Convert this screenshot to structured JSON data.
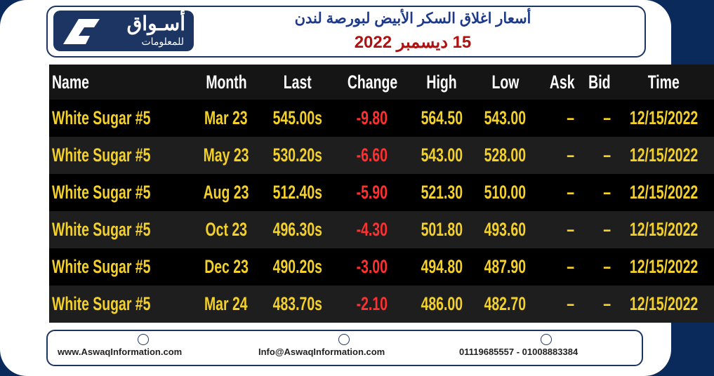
{
  "header": {
    "logo": {
      "name": "أسـواق",
      "subtitle": "للمعلومات"
    },
    "title": "أسعار اغلاق السكر الأبيض لبورصة لندن",
    "date": "15 ديسمبر 2022"
  },
  "table": {
    "columns": [
      "Name",
      "Month",
      "Last",
      "Change",
      "High",
      "Low",
      "Ask",
      "Bid",
      "Time"
    ],
    "rows": [
      [
        "White Sugar #5",
        "Mar 23",
        "545.00s",
        "-9.80",
        "564.50",
        "543.00",
        "–",
        "–",
        "12/15/2022"
      ],
      [
        "White Sugar #5",
        "May 23",
        "530.20s",
        "-6.60",
        "543.00",
        "528.00",
        "–",
        "–",
        "12/15/2022"
      ],
      [
        "White Sugar #5",
        "Aug 23",
        "512.40s",
        "-5.90",
        "521.30",
        "510.00",
        "–",
        "–",
        "12/15/2022"
      ],
      [
        "White Sugar #5",
        "Oct 23",
        "496.30s",
        "-4.30",
        "501.80",
        "493.60",
        "–",
        "–",
        "12/15/2022"
      ],
      [
        "White Sugar #5",
        "Dec 23",
        "490.20s",
        "-3.00",
        "494.80",
        "487.90",
        "–",
        "–",
        "12/15/2022"
      ],
      [
        "White Sugar #5",
        "Mar 24",
        "483.70s",
        "-2.10",
        "486.00",
        "482.70",
        "–",
        "–",
        "12/15/2022"
      ]
    ]
  },
  "footer": {
    "website": "www.AswaqInformation.com",
    "email": "Info@AswaqInformation.com",
    "phone": "01119685557 - 01008883384"
  }
}
